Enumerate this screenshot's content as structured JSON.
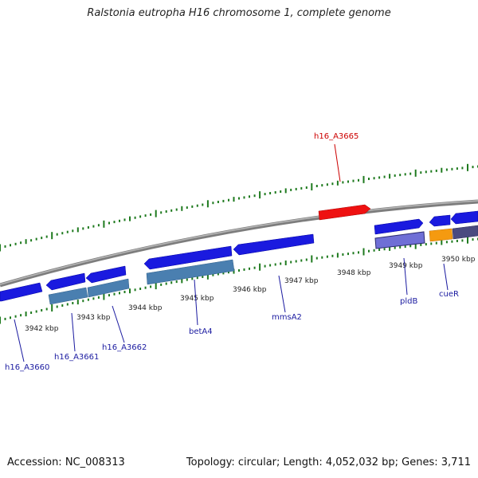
{
  "title": "Ralstonia eutropha H16 chromosome 1, complete genome",
  "footer": {
    "accession": "Accession: NC_008313",
    "topology": "Topology: circular; Length: 4,052,032 bp; Genes: 3,711"
  },
  "colors": {
    "backbone": "#8a8a8a",
    "tick": "#1e7a1e",
    "gene_blue": "#1a1adf",
    "gene_steel": "#4a7fb0",
    "gene_purple": "#6f6fd6",
    "gene_red": "#ee1111",
    "gene_orange": "#f59a10",
    "gene_dark": "#4a4a80",
    "label_blue": "#1a1aa0",
    "label_red": "#cc0000"
  },
  "scale_labels": [
    "3942 kbp",
    "3943 kbp",
    "3944 kbp",
    "3945 kbp",
    "3946 kbp",
    "3947 kbp",
    "3948 kbp",
    "3949 kbp",
    "3950 kbp"
  ],
  "gene_labels": [
    "h16_A3665",
    "h16_A3660",
    "h16_A3661",
    "h16_A3662",
    "betA4",
    "mmsA2",
    "pldB",
    "cueR"
  ]
}
